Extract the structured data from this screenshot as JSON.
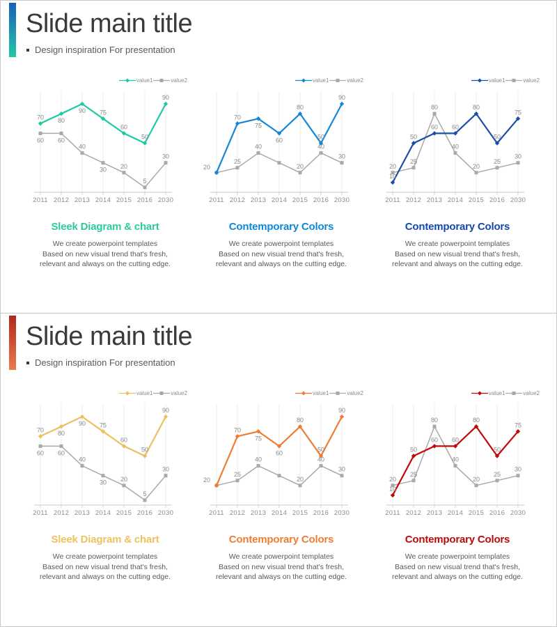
{
  "slides": [
    {
      "title": "Slide main title",
      "subtitle": "Design inspiration For presentation",
      "accent_top": "#1a5fb8",
      "accent_bottom": "#20c8a8",
      "chart_refs": [
        0,
        1,
        2
      ],
      "captions": [
        {
          "heading": "Sleek Diagram & chart",
          "color": "#2bcb9e",
          "body_lines": [
            "We create powerpoint templates",
            "Based on new visual trend that's fresh,",
            "relevant and always on the cutting edge."
          ]
        },
        {
          "heading": "Contemporary Colors",
          "color": "#0c88d8",
          "body_lines": [
            "We create powerpoint templates",
            "Based on new visual trend that's fresh,",
            "relevant and always on the cutting edge."
          ]
        },
        {
          "heading": "Contemporary Colors",
          "color": "#1547ac",
          "body_lines": [
            "We create powerpoint templates",
            "Based on new visual trend that's fresh,",
            "relevant and always on the cutting edge."
          ]
        }
      ]
    },
    {
      "title": "Slide main title",
      "subtitle": "Design inspiration For presentation",
      "accent_top": "#b3261a",
      "accent_bottom": "#ec7b4d",
      "chart_refs": [
        3,
        4,
        5
      ],
      "captions": [
        {
          "heading": "Sleek Diagram & chart",
          "color": "#ecc35f",
          "body_lines": [
            "We create powerpoint templates",
            "Based on new visual trend that's fresh,",
            "relevant and always on the cutting edge."
          ]
        },
        {
          "heading": "Contemporary Colors",
          "color": "#ee7d31",
          "body_lines": [
            "We create powerpoint templates",
            "Based on new visual trend that's fresh,",
            "relevant and always on the cutting edge."
          ]
        },
        {
          "heading": "Contemporary Colors",
          "color": "#b80b0b",
          "body_lines": [
            "We create powerpoint templates",
            "Based on new visual trend that's fresh,",
            "relevant and always on the cutting edge."
          ]
        }
      ]
    }
  ],
  "chart_data": [
    {
      "type": "line",
      "title": "",
      "xlabel": "",
      "ylabel": "",
      "ylim": [
        0,
        95
      ],
      "grid": "vertical",
      "legend_position": "top-right",
      "categories": [
        "2011",
        "2012",
        "2013",
        "2014",
        "2015",
        "2016",
        "2030"
      ],
      "series": [
        {
          "name": "value1",
          "color": "#1ec9a4",
          "marker": "diamond",
          "values": [
            70,
            80,
            90,
            75,
            60,
            50,
            90
          ],
          "label_pos": [
            "a",
            "b",
            "b",
            "a",
            "a",
            "a",
            "a"
          ]
        },
        {
          "name": "value2",
          "color": "#a9a9a9",
          "marker": "square",
          "values": [
            60,
            60,
            40,
            30,
            20,
            5,
            30
          ],
          "label_pos": [
            "b",
            "b",
            "a",
            "b",
            "a",
            "a",
            "a"
          ]
        }
      ]
    },
    {
      "type": "line",
      "title": "",
      "xlabel": "",
      "ylabel": "",
      "ylim": [
        0,
        95
      ],
      "grid": "vertical",
      "legend_position": "top-right",
      "categories": [
        "2011",
        "2012",
        "2013",
        "2014",
        "2015",
        "2016",
        "2030"
      ],
      "series": [
        {
          "name": "value1",
          "color": "#1486d6",
          "marker": "diamond",
          "values": [
            20,
            70,
            75,
            60,
            80,
            50,
            90
          ],
          "label_pos": [
            "al",
            "a",
            "b",
            "b",
            "a",
            "a",
            "a"
          ]
        },
        {
          "name": "value2",
          "color": "#a9a9a9",
          "marker": "square",
          "values": [
            20,
            25,
            40,
            30,
            20,
            40,
            30
          ],
          "label_pos": [
            "h",
            "a",
            "a",
            "h",
            "a",
            "a",
            "a"
          ]
        }
      ]
    },
    {
      "type": "line",
      "title": "",
      "xlabel": "",
      "ylabel": "",
      "ylim": [
        0,
        95
      ],
      "grid": "vertical",
      "legend_position": "top-right",
      "categories": [
        "2011",
        "2012",
        "2013",
        "2014",
        "2015",
        "2016",
        "2030"
      ],
      "series": [
        {
          "name": "value1",
          "color": "#1b4ea6",
          "marker": "diamond",
          "values": [
            10,
            50,
            60,
            60,
            80,
            50,
            75
          ],
          "label_pos": [
            "a",
            "a",
            "a",
            "a",
            "a",
            "a",
            "a"
          ]
        },
        {
          "name": "value2",
          "color": "#a9a9a9",
          "marker": "square",
          "values": [
            20,
            25,
            80,
            40,
            20,
            25,
            30
          ],
          "label_pos": [
            "a",
            "a",
            "a",
            "a",
            "a",
            "a",
            "a"
          ]
        }
      ]
    },
    {
      "type": "line",
      "title": "",
      "xlabel": "",
      "ylabel": "",
      "ylim": [
        0,
        95
      ],
      "grid": "vertical",
      "legend_position": "top-right",
      "categories": [
        "2011",
        "2012",
        "2013",
        "2014",
        "2015",
        "2016",
        "2030"
      ],
      "series": [
        {
          "name": "value1",
          "color": "#ecc05e",
          "marker": "diamond",
          "values": [
            70,
            80,
            90,
            75,
            60,
            50,
            90
          ],
          "label_pos": [
            "a",
            "b",
            "b",
            "a",
            "a",
            "a",
            "a"
          ]
        },
        {
          "name": "value2",
          "color": "#a9a9a9",
          "marker": "square",
          "values": [
            60,
            60,
            40,
            30,
            20,
            5,
            30
          ],
          "label_pos": [
            "b",
            "b",
            "a",
            "b",
            "a",
            "a",
            "a"
          ]
        }
      ]
    },
    {
      "type": "line",
      "title": "",
      "xlabel": "",
      "ylabel": "",
      "ylim": [
        0,
        95
      ],
      "grid": "vertical",
      "legend_position": "top-right",
      "categories": [
        "2011",
        "2012",
        "2013",
        "2014",
        "2015",
        "2016",
        "2030"
      ],
      "series": [
        {
          "name": "value1",
          "color": "#ed7d31",
          "marker": "diamond",
          "values": [
            20,
            70,
            75,
            60,
            80,
            50,
            90
          ],
          "label_pos": [
            "al",
            "a",
            "b",
            "b",
            "a",
            "a",
            "a"
          ]
        },
        {
          "name": "value2",
          "color": "#a9a9a9",
          "marker": "square",
          "values": [
            20,
            25,
            40,
            30,
            20,
            40,
            30
          ],
          "label_pos": [
            "h",
            "a",
            "a",
            "h",
            "a",
            "a",
            "a"
          ]
        }
      ]
    },
    {
      "type": "line",
      "title": "",
      "xlabel": "",
      "ylabel": "",
      "ylim": [
        0,
        95
      ],
      "grid": "vertical",
      "legend_position": "top-right",
      "categories": [
        "2011",
        "2012",
        "2013",
        "2014",
        "2015",
        "2016",
        "2030"
      ],
      "series": [
        {
          "name": "value1",
          "color": "#c00808",
          "marker": "diamond",
          "values": [
            10,
            50,
            60,
            60,
            80,
            50,
            75
          ],
          "label_pos": [
            "a",
            "a",
            "a",
            "a",
            "a",
            "a",
            "a"
          ]
        },
        {
          "name": "value2",
          "color": "#a9a9a9",
          "marker": "square",
          "values": [
            20,
            25,
            80,
            40,
            20,
            25,
            30
          ],
          "label_pos": [
            "a",
            "a",
            "a",
            "a",
            "a",
            "a",
            "a"
          ]
        }
      ]
    }
  ],
  "theme": {
    "grid_color": "#ececec",
    "axis_color": "#c9c9c9",
    "data_label_color": "#8a8a8a",
    "tick_label_color": "#8c8c8c",
    "legend_text_color": "#8a8a8a"
  }
}
